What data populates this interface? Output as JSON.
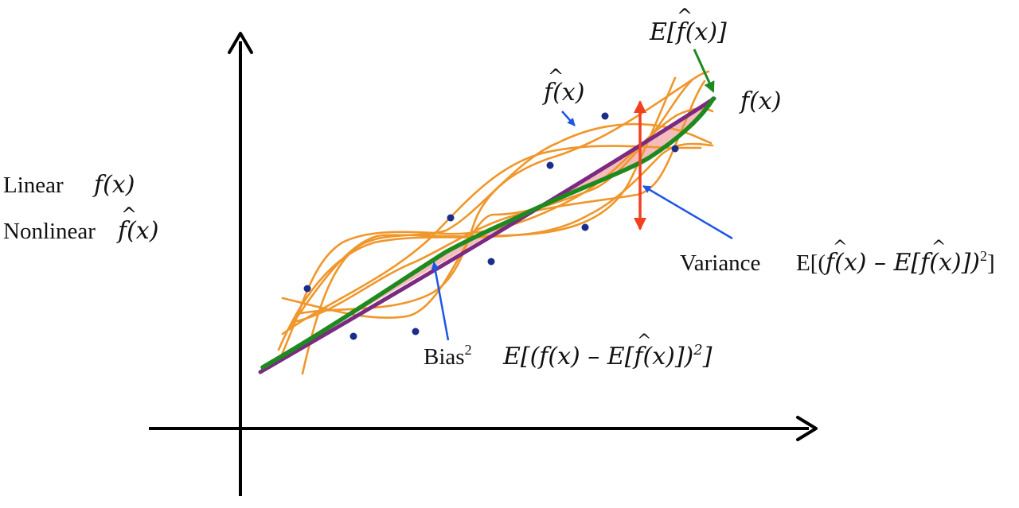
{
  "labels": {
    "linear_word": "Linear",
    "linear_fx": "f(x)",
    "nonlinear_word": "Nonlinear",
    "nonlinear_fx": "f(x)",
    "expected_fhat": "E[f(x)]",
    "fhat": "f(x)",
    "true_fx": "f(x)",
    "variance_word": "Variance",
    "variance_formula_a": "E[(",
    "variance_formula_b": "f(x) – E[f(x)])",
    "variance_exp": "2",
    "variance_formula_c": "]",
    "bias_word": "Bias",
    "bias_exp": "2",
    "bias_formula_a": "E[(f(x) – E[f(x)])",
    "bias_formula_exp": "2",
    "bias_formula_c": "]"
  },
  "colors": {
    "axis": "#000000",
    "true_function": "#7b2a82",
    "expected_estimate": "#1e8a1e",
    "estimates": "#f0962a",
    "points": "#1a2d8a",
    "pointer_arrows": "#1f55e6",
    "variance_arrow": "#f04020",
    "bias_fill": "#f3b0b0"
  },
  "icons": {
    "axis_arrows": "arrowhead",
    "pointers": "arrow"
  }
}
